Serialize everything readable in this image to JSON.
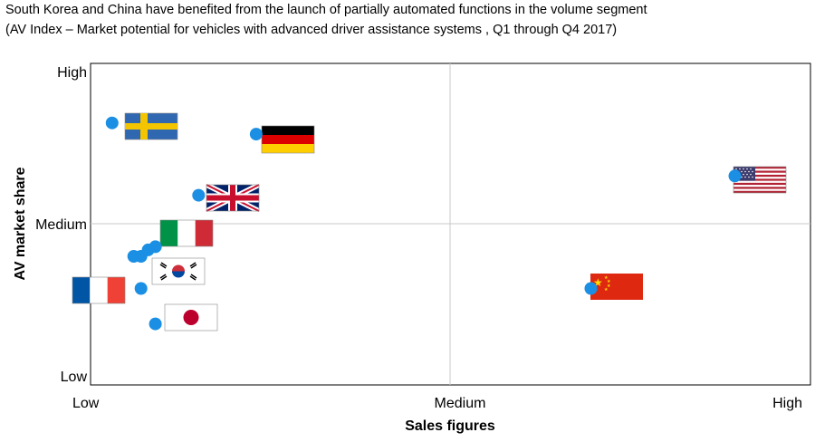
{
  "title": "South Korea and China have benefited from the launch of partially automated functions in the volume segment",
  "subtitle": "(AV Index – Market potential for vehicles with advanced driver assistance systems  , Q1 through Q4 2017)",
  "chart_data": {
    "type": "scatter",
    "xlabel": "Sales figures",
    "ylabel": "AV market share",
    "x_ticks": [
      "Low",
      "Medium",
      "High"
    ],
    "y_ticks": [
      "Low",
      "Medium",
      "High"
    ],
    "xlim": [
      0,
      2
    ],
    "ylim": [
      0,
      2
    ],
    "grid": "midlines",
    "marker_color": "#1a8fe3",
    "points": [
      {
        "flag": "sweden-flag",
        "x": 0.06,
        "y": 1.63
      },
      {
        "flag": "germany-flag",
        "x": 0.46,
        "y": 1.56
      },
      {
        "flag": "usa-flag",
        "x": 1.79,
        "y": 1.3
      },
      {
        "flag": "uk-flag",
        "x": 0.3,
        "y": 1.18
      },
      {
        "flag": "italy-flag",
        "x": 0.18,
        "y": 0.86
      },
      {
        "flag": "korea-flag",
        "x": 0.14,
        "y": 0.8
      },
      {
        "flag": "france-flag",
        "x": 0.14,
        "y": 0.6
      },
      {
        "flag": "china-flag",
        "x": 1.39,
        "y": 0.6
      },
      {
        "flag": "japan-flag",
        "x": 0.18,
        "y": 0.38
      }
    ]
  }
}
